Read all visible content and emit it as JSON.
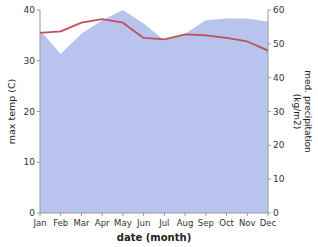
{
  "chart_data": {
    "type": "line",
    "xlabel": "date (month)",
    "ylabel": "max temp (C)",
    "y2label": "med. precipitation\n(kg/m2)",
    "categories": [
      "Jan",
      "Feb",
      "Mar",
      "Apr",
      "May",
      "Jun",
      "Jul",
      "Aug",
      "Sep",
      "Oct",
      "Nov",
      "Dec"
    ],
    "series": [
      {
        "type": "area",
        "axis": "y2",
        "color": "#b8c4ee",
        "values": [
          54.0,
          47.0,
          53.0,
          57.0,
          60.0,
          56.0,
          51.0,
          53.0,
          57.0,
          57.5,
          57.5,
          56.5
        ]
      },
      {
        "type": "line",
        "color": "#c0505a",
        "values": [
          35.5,
          35.8,
          37.5,
          38.2,
          37.5,
          34.5,
          34.2,
          35.2,
          35.0,
          34.5,
          33.8,
          32.0
        ]
      }
    ],
    "ylim": [
      0,
      40
    ],
    "yticks": [
      0,
      10,
      20,
      30,
      40
    ],
    "y2lim": [
      0,
      60
    ],
    "y2ticks": [
      0,
      10,
      20,
      30,
      40,
      50,
      60
    ],
    "grid": false
  }
}
